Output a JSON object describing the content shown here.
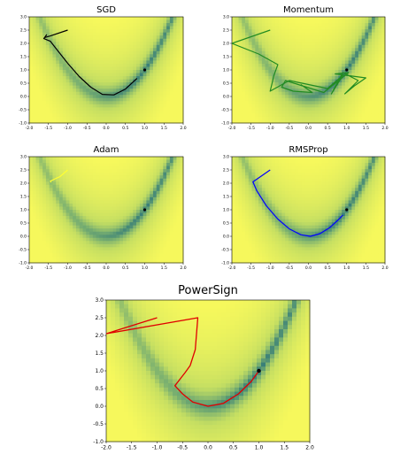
{
  "chart_data": [
    {
      "type": "line",
      "title": "SGD",
      "xlim": [
        -2.0,
        2.0
      ],
      "ylim": [
        -1.0,
        3.0
      ],
      "xticks": [
        "-2.0",
        "-1.5",
        "-1.0",
        "-0.5",
        "0.0",
        "0.5",
        "1.0",
        "1.5",
        "2.0"
      ],
      "yticks": [
        "-1.0",
        "-0.5",
        "0.0",
        "0.5",
        "1.0",
        "1.5",
        "2.0",
        "2.5",
        "3.0"
      ],
      "background": "Rosenbrock function heatmap (yellow high, green valley along y = x^2)",
      "grid": false,
      "series": [
        {
          "color": "#000000",
          "x": [
            -1.0,
            -1.45,
            -1.6,
            -1.55,
            -1.62,
            -1.45,
            -1.3,
            -1.0,
            -0.7,
            -0.4,
            -0.1,
            0.2,
            0.5,
            0.8
          ],
          "y": [
            2.5,
            2.28,
            2.22,
            2.32,
            2.18,
            2.08,
            1.8,
            1.25,
            0.75,
            0.35,
            0.08,
            0.06,
            0.28,
            0.68
          ]
        }
      ],
      "minimum": {
        "x": 1.0,
        "y": 1.0
      }
    },
    {
      "type": "line",
      "title": "Momentum",
      "xlim": [
        -2.0,
        2.0
      ],
      "ylim": [
        -1.0,
        3.0
      ],
      "xticks": [
        "-2.0",
        "-1.5",
        "-1.0",
        "-0.5",
        "0.0",
        "0.5",
        "1.0",
        "1.5",
        "2.0"
      ],
      "yticks": [
        "-1.0",
        "-0.5",
        "0.0",
        "0.5",
        "1.0",
        "1.5",
        "2.0",
        "2.5",
        "3.0"
      ],
      "background": "Rosenbrock function heatmap (yellow high, green valley along y = x^2)",
      "grid": false,
      "series": [
        {
          "color": "#228b22",
          "x": [
            -1.0,
            -2.0,
            -1.3,
            -0.8,
            -0.9,
            -1.0,
            -0.5,
            0.5,
            0.9,
            0.6,
            0.9,
            1.3,
            0.95,
            1.2,
            1.5,
            0.7,
            1.05,
            0.4,
            -0.6,
            -0.7,
            -0.4,
            0.1,
            -0.2
          ],
          "y": [
            2.5,
            2.0,
            1.6,
            1.2,
            0.8,
            0.2,
            0.6,
            0.3,
            0.8,
            0.1,
            0.9,
            0.6,
            0.1,
            0.4,
            0.7,
            0.85,
            0.9,
            0.15,
            0.6,
            0.35,
            0.2,
            0.15,
            0.45
          ]
        }
      ],
      "minimum": {
        "x": 1.0,
        "y": 1.0
      }
    },
    {
      "type": "line",
      "title": "Adam",
      "xlim": [
        -2.0,
        2.0
      ],
      "ylim": [
        -1.0,
        3.0
      ],
      "xticks": [
        "-2.0",
        "-1.5",
        "-1.0",
        "-0.5",
        "0.0",
        "0.5",
        "1.0",
        "1.5",
        "2.0"
      ],
      "yticks": [
        "-1.0",
        "-0.5",
        "0.0",
        "0.5",
        "1.0",
        "1.5",
        "2.0",
        "2.5",
        "3.0"
      ],
      "background": "Rosenbrock function heatmap (yellow high, green valley along y = x^2)",
      "grid": false,
      "series": [
        {
          "color": "#ffff33",
          "x": [
            -1.0,
            -1.2,
            -1.45,
            -1.43
          ],
          "y": [
            2.5,
            2.25,
            2.08,
            2.03
          ]
        }
      ],
      "minimum": {
        "x": 1.0,
        "y": 1.0
      }
    },
    {
      "type": "line",
      "title": "RMSProp",
      "xlim": [
        -2.0,
        2.0
      ],
      "ylim": [
        -1.0,
        3.0
      ],
      "xticks": [
        "-2.0",
        "-1.5",
        "-1.0",
        "-0.5",
        "0.0",
        "0.5",
        "1.0",
        "1.5",
        "2.0"
      ],
      "yticks": [
        "-1.0",
        "-0.5",
        "0.0",
        "0.5",
        "1.0",
        "1.5",
        "2.0",
        "2.5",
        "3.0"
      ],
      "background": "Rosenbrock function heatmap (yellow high, green valley along y = x^2)",
      "grid": false,
      "series": [
        {
          "color": "#0000ff",
          "x": [
            -1.0,
            -1.45,
            -1.35,
            -1.1,
            -0.8,
            -0.5,
            -0.2,
            0.05,
            0.3,
            0.55,
            0.8,
            0.9
          ],
          "y": [
            2.5,
            2.05,
            1.72,
            1.15,
            0.65,
            0.28,
            0.06,
            0.0,
            0.1,
            0.32,
            0.65,
            0.8
          ]
        }
      ],
      "minimum": {
        "x": 1.0,
        "y": 1.0
      }
    },
    {
      "type": "line",
      "title": "PowerSign",
      "xlim": [
        -2.0,
        2.0
      ],
      "ylim": [
        -1.0,
        3.0
      ],
      "xticks": [
        "-2.0",
        "-1.5",
        "-1.0",
        "-0.5",
        "0.0",
        "0.5",
        "1.0",
        "1.5",
        "2.0"
      ],
      "yticks": [
        "-1.0",
        "-0.5",
        "0.0",
        "0.5",
        "1.0",
        "1.5",
        "2.0",
        "2.5",
        "3.0"
      ],
      "background": "Rosenbrock function heatmap (yellow high, green valley along y = x^2)",
      "grid": false,
      "series": [
        {
          "color": "#e00000",
          "x": [
            -1.0,
            -2.0,
            -0.2,
            -0.25,
            -0.35,
            -0.45,
            -0.65,
            -0.5,
            -0.3,
            0.0,
            0.3,
            0.6,
            0.85,
            1.0
          ],
          "y": [
            2.5,
            2.05,
            2.5,
            1.6,
            1.15,
            0.95,
            0.58,
            0.35,
            0.12,
            0.0,
            0.08,
            0.35,
            0.7,
            1.0
          ]
        }
      ],
      "minimum": {
        "x": 1.0,
        "y": 1.0
      }
    }
  ]
}
